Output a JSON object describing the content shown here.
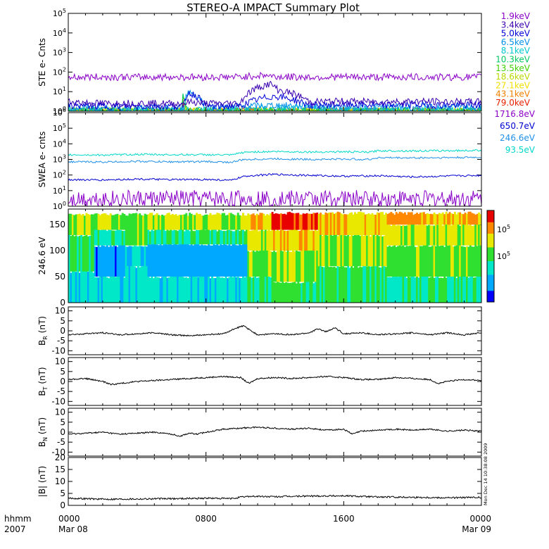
{
  "title": "STEREO-A IMPACT Summary Plot",
  "time_axis": {
    "corner_top": "hhmm",
    "corner_bottom": "2007",
    "ticks": [
      {
        "hours": 0,
        "top": "0000",
        "bottom": "Mar 08"
      },
      {
        "hours": 8,
        "top": "0800",
        "bottom": ""
      },
      {
        "hours": 16,
        "top": "1600",
        "bottom": ""
      },
      {
        "hours": 24,
        "top": "0000",
        "bottom": "Mar 09"
      }
    ],
    "minor_hours": [
      1,
      2,
      3,
      4,
      5,
      6,
      7,
      9,
      10,
      11,
      12,
      13,
      14,
      15,
      17,
      18,
      19,
      20,
      21,
      22,
      23
    ]
  },
  "side_stamp": "Mon Dec 14 10:38:08 2009",
  "ste_legend": [
    {
      "label": "1.9keV",
      "color": "#8a00c8"
    },
    {
      "label": "3.4keV",
      "color": "#3a00b0"
    },
    {
      "label": "5.0keV",
      "color": "#0000d8"
    },
    {
      "label": "6.5keV",
      "color": "#0090e8"
    },
    {
      "label": "8.1keV",
      "color": "#00c8d0"
    },
    {
      "label": "10.3keV",
      "color": "#00c860"
    },
    {
      "label": "13.5keV",
      "color": "#40d000"
    },
    {
      "label": "18.6keV",
      "color": "#b8d800"
    },
    {
      "label": "27.1keV",
      "color": "#f0e000"
    },
    {
      "label": "43.1keV",
      "color": "#f08000"
    },
    {
      "label": "79.0keV",
      "color": "#e82000"
    }
  ],
  "swea_legend": [
    {
      "label": "1716.8eV",
      "color": "#8a00c8"
    },
    {
      "label": "650.7eV",
      "color": "#0000d0"
    },
    {
      "label": "246.6eV",
      "color": "#2090e8"
    },
    {
      "label": "93.5eV",
      "color": "#00d8c8"
    }
  ],
  "chart_data": [
    {
      "type": "line",
      "panel": "ste",
      "ylabel": "STE e- Cnts",
      "yscale": "log",
      "ylim": [
        1,
        100000
      ],
      "yticks": [
        {
          "base": "10",
          "exp": "0"
        },
        {
          "base": "10",
          "exp": "1"
        },
        {
          "base": "10",
          "exp": "2"
        },
        {
          "base": "10",
          "exp": "3"
        },
        {
          "base": "10",
          "exp": "4"
        },
        {
          "base": "10",
          "exp": "5"
        }
      ],
      "x_range_hours": [
        0,
        24
      ],
      "series": [
        {
          "name": "1.9keV",
          "x": [
            0,
            2,
            4,
            6,
            8,
            10,
            11.5,
            12,
            14,
            16,
            18,
            20,
            22,
            24
          ],
          "y": [
            55,
            56,
            55,
            56,
            55,
            56,
            70,
            58,
            55,
            56,
            55,
            56,
            55,
            56
          ]
        },
        {
          "name": "3.4keV",
          "x": [
            0,
            2,
            4,
            6.7,
            7,
            8,
            10,
            11.7,
            12.2,
            14,
            16,
            18,
            20,
            22,
            24
          ],
          "y": [
            3,
            2.5,
            2.6,
            2.4,
            3,
            2.5,
            2.5,
            25,
            12,
            3,
            3.2,
            3,
            3.2,
            3,
            3
          ]
        },
        {
          "name": "5.0keV",
          "x": [
            0,
            2,
            4,
            6.7,
            7,
            8,
            10,
            12,
            14,
            16,
            18,
            20,
            22,
            24
          ],
          "y": [
            2,
            1.8,
            1.8,
            1.8,
            9,
            1.8,
            1.8,
            6,
            2,
            2.2,
            2,
            2.2,
            2,
            2.1
          ]
        },
        {
          "name": "6.5keV",
          "x": [
            0,
            4,
            6.7,
            7,
            8,
            12,
            16,
            20,
            24
          ],
          "y": [
            1.5,
            1.4,
            1.4,
            10,
            1.4,
            2,
            1.6,
            1.6,
            1.6
          ]
        },
        {
          "name": "8.1keV",
          "x": [
            0,
            6,
            6.7,
            8,
            12,
            18,
            24
          ],
          "y": [
            1.2,
            1.2,
            1.2,
            1.2,
            1.4,
            1.2,
            1.2
          ]
        },
        {
          "name": "10.3keV",
          "x": [
            0,
            6.6,
            6.65,
            6.7,
            6.8,
            7,
            24
          ],
          "y": [
            1,
            1,
            8,
            6,
            2,
            1,
            1
          ]
        },
        {
          "name": "13.5keV",
          "x": [
            0,
            6.6,
            6.65,
            6.72,
            6.8,
            7,
            24
          ],
          "y": [
            1,
            1,
            5,
            7,
            2,
            1,
            1
          ]
        },
        {
          "name": "18.6keV",
          "x": [
            0,
            6.6,
            6.68,
            6.75,
            6.85,
            24
          ],
          "y": [
            1,
            1,
            4,
            3,
            1,
            1
          ]
        },
        {
          "name": "27.1keV",
          "x": [
            0,
            6.6,
            6.7,
            6.78,
            24
          ],
          "y": [
            1,
            1,
            5,
            1,
            1
          ]
        },
        {
          "name": "43.1keV",
          "x": [
            0,
            6.6,
            6.66,
            6.72,
            24
          ],
          "y": [
            1,
            1,
            6,
            1,
            1
          ]
        },
        {
          "name": "79.0keV",
          "x": [
            0,
            6.6,
            6.63,
            6.68,
            24
          ],
          "y": [
            1,
            1,
            4,
            1,
            1
          ]
        }
      ]
    },
    {
      "type": "line",
      "panel": "swea",
      "ylabel": "SWEA e- cnts",
      "yscale": "log",
      "ylim": [
        1,
        1000000
      ],
      "yticks": [
        {
          "base": "10",
          "exp": "0"
        },
        {
          "base": "10",
          "exp": "1"
        },
        {
          "base": "10",
          "exp": "2"
        },
        {
          "base": "10",
          "exp": "3"
        },
        {
          "base": "10",
          "exp": "4"
        },
        {
          "base": "10",
          "exp": "5"
        },
        {
          "base": "10",
          "exp": "6"
        }
      ],
      "x_range_hours": [
        0,
        24
      ],
      "series": [
        {
          "name": "1716.8eV",
          "x": [
            0,
            2,
            4,
            6,
            8,
            10,
            12,
            14,
            16,
            18,
            20,
            22,
            24
          ],
          "y": [
            3,
            3,
            3,
            3,
            3,
            3,
            3,
            3,
            3,
            3,
            3,
            3,
            3
          ]
        },
        {
          "name": "650.7eV",
          "x": [
            0,
            2,
            4,
            6,
            8,
            9.5,
            10,
            10.5,
            12,
            14,
            16,
            18,
            20,
            22,
            24
          ],
          "y": [
            50,
            48,
            55,
            50,
            52,
            45,
            70,
            90,
            110,
            95,
            85,
            90,
            75,
            85,
            95
          ]
        },
        {
          "name": "246.6eV",
          "x": [
            0,
            2,
            4,
            6,
            8,
            9.5,
            10,
            10.5,
            12,
            14,
            16,
            17.5,
            18,
            20,
            22,
            24
          ],
          "y": [
            700,
            680,
            750,
            700,
            720,
            650,
            900,
            1000,
            1100,
            1000,
            1050,
            1000,
            1300,
            1250,
            1300,
            1350
          ]
        },
        {
          "name": "93.5eV",
          "x": [
            0,
            2,
            4,
            6,
            8,
            9.5,
            10,
            10.5,
            12,
            14,
            16,
            17.5,
            18,
            20,
            22,
            24
          ],
          "y": [
            2000,
            1900,
            2100,
            2000,
            2000,
            1900,
            2600,
            3000,
            3200,
            3000,
            3100,
            2900,
            3600,
            3500,
            3600,
            3800
          ]
        }
      ]
    },
    {
      "type": "heatmap",
      "panel": "pad",
      "ylabel": "246.6 eV",
      "ylim": [
        0,
        180
      ],
      "yticks": [
        "0",
        "50",
        "100",
        "150"
      ],
      "colorbar": {
        "scale": "log",
        "range": [
          50000,
          200000
        ],
        "ticks": [
          {
            "base": "10",
            "exp": "5",
            "value": 100000
          },
          {
            "base": "10",
            "exp": "5",
            "value": 150000
          }
        ]
      },
      "x_range_hours": [
        0,
        24
      ],
      "segments": [
        {
          "start": 0,
          "end": 1.5,
          "bands": [
            {
              "lo": 0,
              "hi": 60,
              "level": 0.35
            },
            {
              "lo": 60,
              "hi": 130,
              "level": 0.5
            },
            {
              "lo": 130,
              "hi": 170,
              "level": 0.6
            }
          ]
        },
        {
          "start": 1.5,
          "end": 3.3,
          "bands": [
            {
              "lo": 0,
              "hi": 50,
              "level": 0.35
            },
            {
              "lo": 50,
              "hi": 110,
              "level": 0.18
            },
            {
              "lo": 110,
              "hi": 140,
              "level": 0.45
            },
            {
              "lo": 140,
              "hi": 170,
              "level": 0.6
            }
          ]
        },
        {
          "start": 3.3,
          "end": 4.6,
          "bands": [
            {
              "lo": 0,
              "hi": 70,
              "level": 0.35
            },
            {
              "lo": 70,
              "hi": 110,
              "level": 0.3
            },
            {
              "lo": 110,
              "hi": 170,
              "level": 0.55
            }
          ]
        },
        {
          "start": 4.6,
          "end": 10.4,
          "bands": [
            {
              "lo": 0,
              "hi": 50,
              "level": 0.33
            },
            {
              "lo": 50,
              "hi": 112,
              "level": 0.22
            },
            {
              "lo": 112,
              "hi": 140,
              "level": 0.45
            },
            {
              "lo": 140,
              "hi": 170,
              "level": 0.6
            }
          ]
        },
        {
          "start": 10.4,
          "end": 11.8,
          "bands": [
            {
              "lo": 0,
              "hi": 50,
              "level": 0.45
            },
            {
              "lo": 50,
              "hi": 100,
              "level": 0.55
            },
            {
              "lo": 100,
              "hi": 140,
              "level": 0.65
            },
            {
              "lo": 140,
              "hi": 170,
              "level": 0.75
            }
          ]
        },
        {
          "start": 11.8,
          "end": 14.5,
          "bands": [
            {
              "lo": 0,
              "hi": 40,
              "level": 0.5
            },
            {
              "lo": 40,
              "hi": 100,
              "level": 0.6
            },
            {
              "lo": 100,
              "hi": 140,
              "level": 0.72
            },
            {
              "lo": 140,
              "hi": 172,
              "level": 0.9
            }
          ]
        },
        {
          "start": 14.5,
          "end": 18.5,
          "bands": [
            {
              "lo": 0,
              "hi": 70,
              "level": 0.5
            },
            {
              "lo": 70,
              "hi": 130,
              "level": 0.6
            },
            {
              "lo": 130,
              "hi": 172,
              "level": 0.72
            }
          ]
        },
        {
          "start": 18.5,
          "end": 24,
          "bands": [
            {
              "lo": 0,
              "hi": 50,
              "level": 0.42
            },
            {
              "lo": 50,
              "hi": 110,
              "level": 0.55
            },
            {
              "lo": 110,
              "hi": 150,
              "level": 0.65
            },
            {
              "lo": 150,
              "hi": 172,
              "level": 0.78
            }
          ]
        }
      ]
    },
    {
      "type": "line",
      "panel": "br",
      "ylabel": {
        "main": "B",
        "sub": "R",
        "unit": " (nT)"
      },
      "ylim": [
        -12,
        12
      ],
      "yticks": [
        "-10",
        "-5",
        "0",
        "5",
        "10"
      ],
      "x_range_hours": [
        0,
        24
      ],
      "x": [
        0,
        1,
        2,
        3,
        4,
        5,
        6,
        7,
        8,
        9,
        9.8,
        10.2,
        10.6,
        11,
        12,
        13,
        14,
        14.5,
        15,
        15.5,
        16,
        17,
        18,
        19,
        20,
        21,
        22,
        23,
        24
      ],
      "y": [
        -2,
        -1.5,
        -1,
        -2,
        -1.5,
        -1,
        -2,
        -2.5,
        -2,
        -1.5,
        1.5,
        2.5,
        0,
        -2,
        -1.5,
        -2,
        -1,
        1,
        -0.5,
        1.5,
        -1.5,
        -1,
        -2,
        -1.5,
        -1,
        -2,
        -1,
        -2,
        -1
      ]
    },
    {
      "type": "line",
      "panel": "bt",
      "ylabel": {
        "main": "B",
        "sub": "T",
        "unit": " (nT)"
      },
      "ylim": [
        -12,
        12
      ],
      "yticks": [
        "-10",
        "-5",
        "0",
        "5",
        "10"
      ],
      "x_range_hours": [
        0,
        24
      ],
      "x": [
        0,
        1,
        2,
        2.5,
        3,
        4,
        5,
        6,
        7,
        8,
        9,
        10,
        10.5,
        11,
        12,
        13,
        14,
        15,
        16,
        17,
        18,
        19,
        20,
        21,
        21.5,
        22,
        23,
        24
      ],
      "y": [
        1,
        1.5,
        0,
        -1.5,
        -1,
        0,
        0.5,
        1,
        1.5,
        2,
        2.5,
        2,
        -1,
        1.5,
        2,
        1.5,
        2,
        2.5,
        2,
        1,
        1,
        2,
        1.5,
        1,
        -1,
        0,
        1,
        0.5
      ]
    },
    {
      "type": "line",
      "panel": "bn",
      "ylabel": {
        "main": "B",
        "sub": "N",
        "unit": " (nT)"
      },
      "ylim": [
        -12,
        12
      ],
      "yticks": [
        "-10",
        "-5",
        "0",
        "5",
        "10"
      ],
      "x_range_hours": [
        0,
        24
      ],
      "x": [
        0,
        1,
        2,
        3,
        4,
        5,
        6,
        6.5,
        7,
        7.5,
        8,
        9,
        10,
        11,
        12,
        13,
        14,
        15,
        16,
        16.5,
        17,
        18,
        19,
        20,
        21,
        22,
        23,
        24
      ],
      "y": [
        -1,
        -0.5,
        0,
        -1,
        -0.5,
        0,
        -1,
        -2,
        -0.5,
        -1,
        0,
        1.5,
        2,
        2.5,
        2,
        1.5,
        2,
        1,
        1.5,
        -1,
        0.5,
        1,
        1.5,
        1,
        1.5,
        0.5,
        1,
        0.5
      ]
    },
    {
      "type": "line",
      "panel": "bmag",
      "ylabel": {
        "main": "|B|",
        "sub": "",
        "unit": " (nT)"
      },
      "ylim": [
        0,
        20
      ],
      "yticks": [
        "0",
        "5",
        "10",
        "15",
        "20"
      ],
      "x_range_hours": [
        0,
        24
      ],
      "x": [
        0,
        2,
        4,
        6,
        8,
        9.5,
        10,
        10.5,
        12,
        14,
        16,
        18,
        20,
        22,
        24
      ],
      "y": [
        3,
        2.6,
        2.7,
        2.8,
        3,
        2.8,
        3.4,
        3.8,
        3.6,
        3.9,
        4,
        3.5,
        3.4,
        3.2,
        3.3
      ]
    }
  ]
}
